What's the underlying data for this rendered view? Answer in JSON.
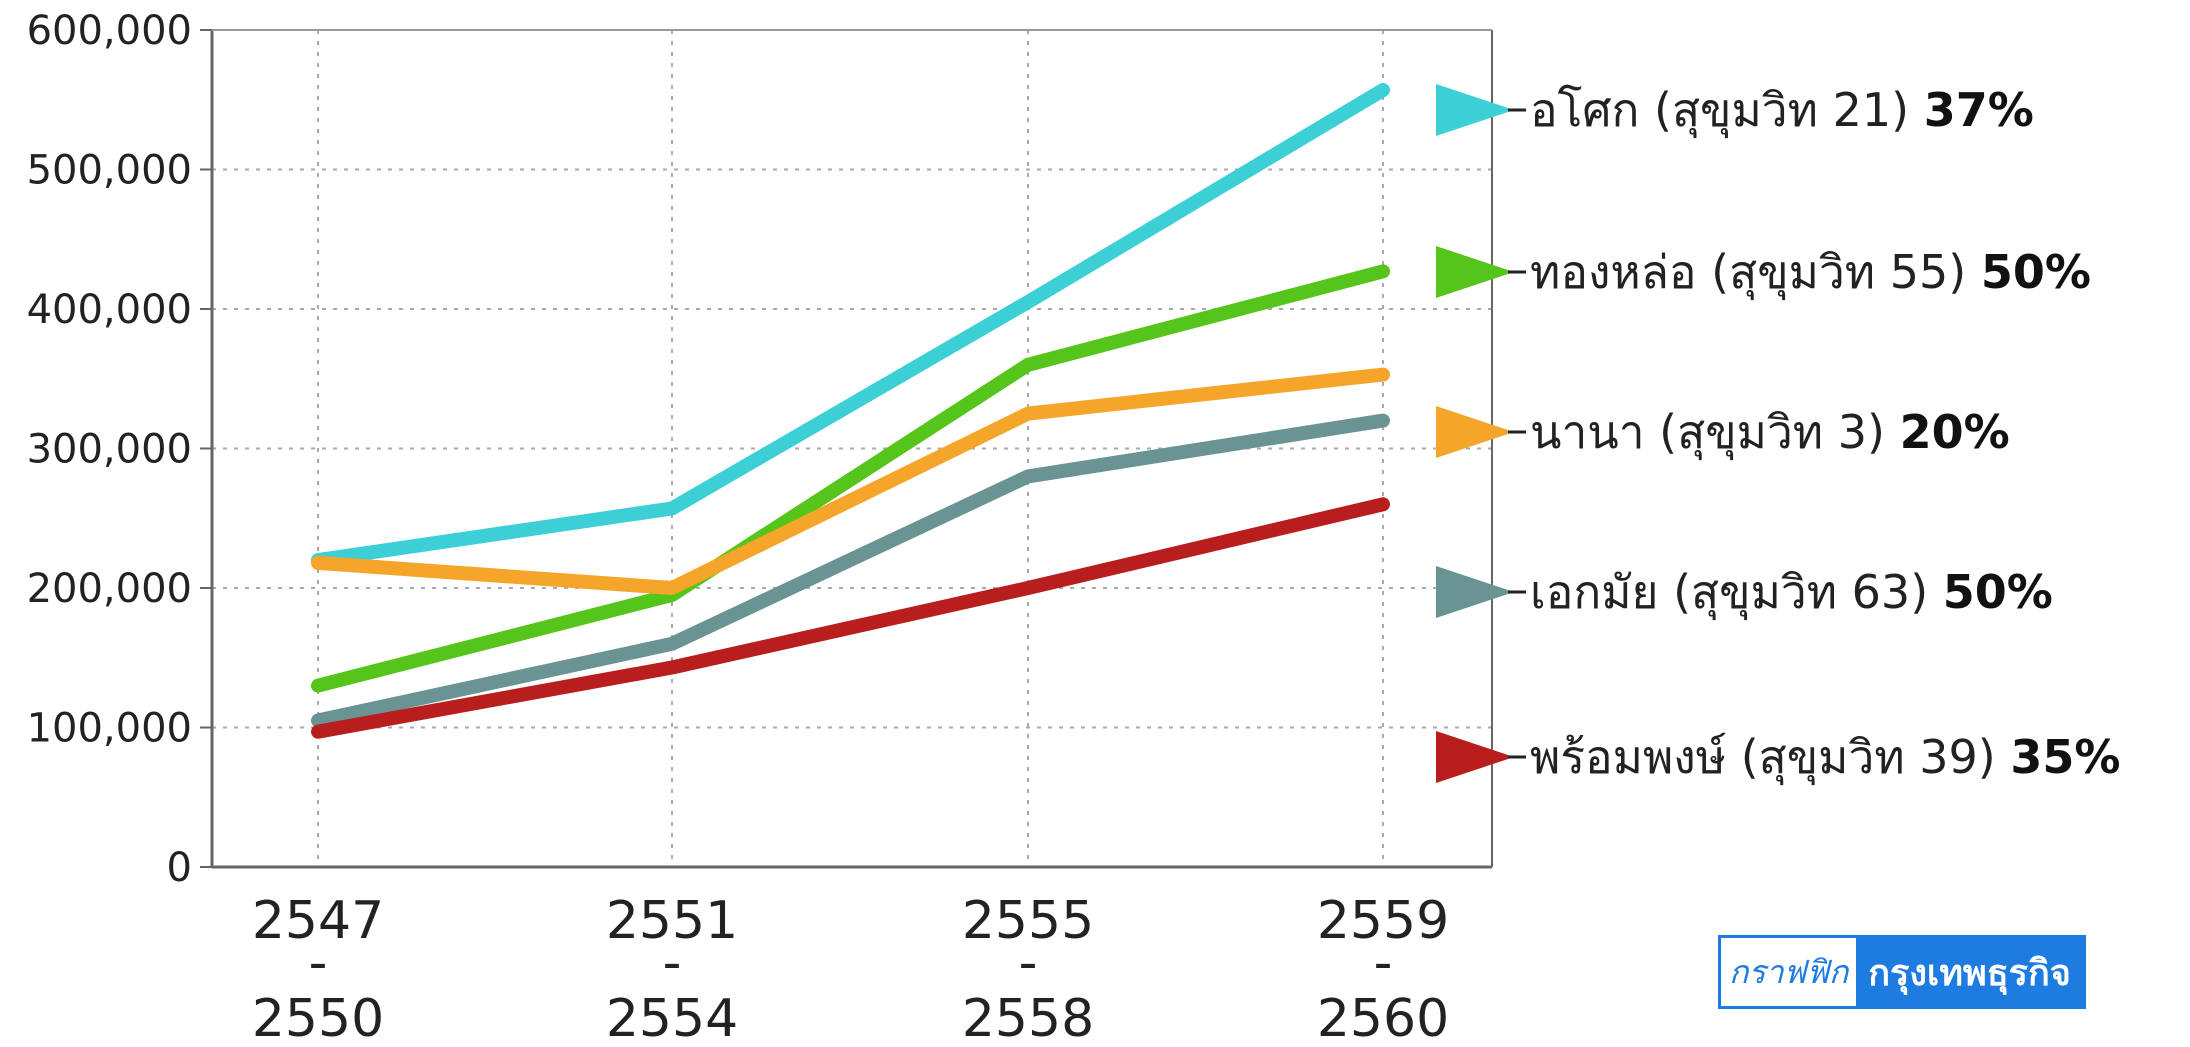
{
  "chart_data": {
    "type": "line",
    "categories": [
      {
        "top": "2547",
        "sep": "-",
        "bottom": "2550"
      },
      {
        "top": "2551",
        "sep": "-",
        "bottom": "2554"
      },
      {
        "top": "2555",
        "sep": "-",
        "bottom": "2558"
      },
      {
        "top": "2559",
        "sep": "-",
        "bottom": "2560"
      }
    ],
    "ylim": [
      0,
      600000
    ],
    "yticks": [
      {
        "value": 0,
        "label": "0"
      },
      {
        "value": 100000,
        "label": "100,000"
      },
      {
        "value": 200000,
        "label": "200,000"
      },
      {
        "value": 300000,
        "label": "300,000"
      },
      {
        "value": 400000,
        "label": "400,000"
      },
      {
        "value": 500000,
        "label": "500,000"
      },
      {
        "value": 600000,
        "label": "600,000"
      }
    ],
    "grid": true,
    "legend_position": "right",
    "series": [
      {
        "name": "อโศก (สุขุมวิท 21)",
        "pct": "37%",
        "color": "#3ccfd6",
        "values": [
          220000,
          257000,
          405000,
          557000
        ]
      },
      {
        "name": "ทองหล่อ (สุขุมวิท 55)",
        "pct": "50%",
        "color": "#55c51b",
        "values": [
          130000,
          195000,
          360000,
          427000
        ]
      },
      {
        "name": "นานา (สุขุมวิท 3)",
        "pct": "20%",
        "color": "#f5a52a",
        "values": [
          218000,
          200000,
          325000,
          353000
        ]
      },
      {
        "name": "เอกมัย (สุขุมวิท 63)",
        "pct": "50%",
        "color": "#6a9494",
        "values": [
          105000,
          160000,
          280000,
          320000
        ]
      },
      {
        "name": "พร้อมพงษ์ (สุขุมวิท 39)",
        "pct": "35%",
        "color": "#b81e1e",
        "values": [
          97000,
          143000,
          200000,
          260000
        ]
      }
    ]
  },
  "badge": {
    "left_text": "กราฟฟิก",
    "right_text": "กรุงเทพธุรกิจ"
  }
}
